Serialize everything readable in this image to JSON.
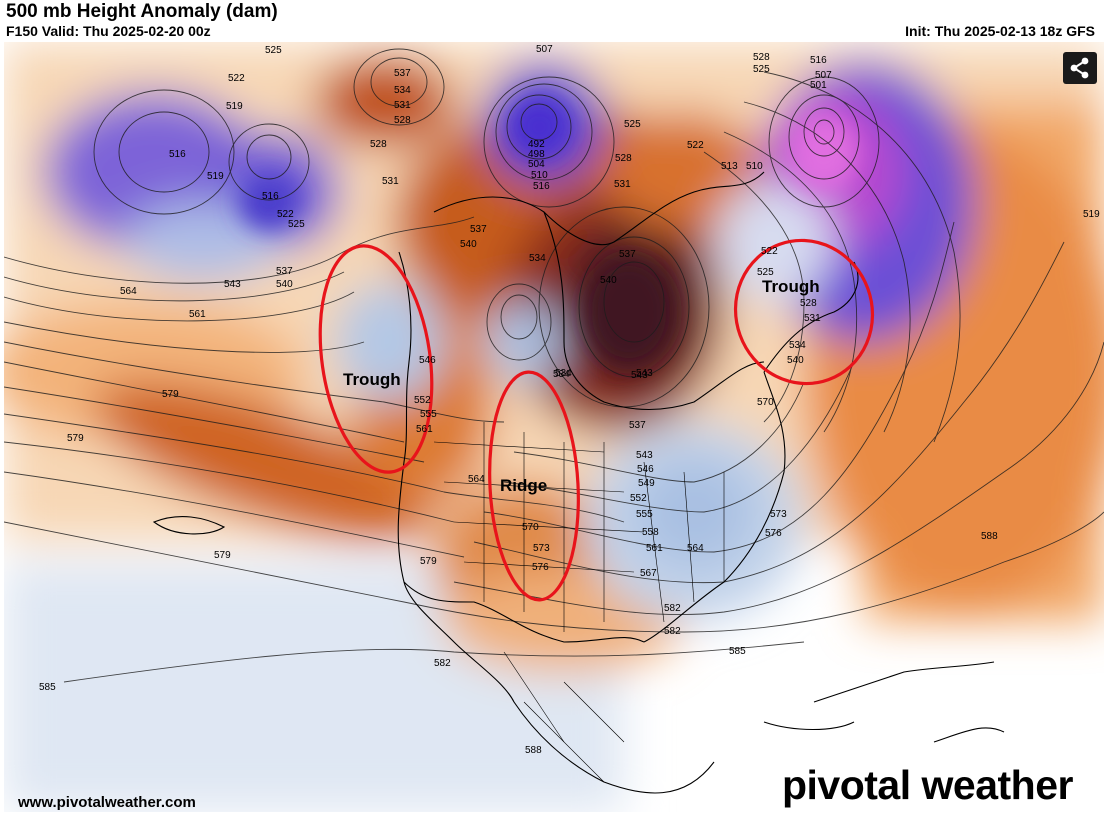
{
  "header": {
    "title": "500 mb Height Anomaly (dam)",
    "valid": "F150 Valid: Thu 2025-02-20 00z",
    "init": "Init: Thu 2025-02-13 18z GFS"
  },
  "footer": {
    "site": "www.pivotalweather.com",
    "brand": "pivotal weather"
  },
  "share_button": {
    "icon": "share-icon"
  },
  "annotations": [
    {
      "id": "trough-west",
      "text": "Trough",
      "circle_color": "#e8141b"
    },
    {
      "id": "ridge",
      "text": "Ridge",
      "circle_color": "#e8141b"
    },
    {
      "id": "trough-east",
      "text": "Trough",
      "circle_color": "#e8141b"
    }
  ],
  "contour_labels": [
    "525",
    "522",
    "519",
    "516",
    "519",
    "516",
    "522",
    "525",
    "537",
    "534",
    "531",
    "528",
    "507",
    "492",
    "498",
    "504",
    "510",
    "516",
    "525",
    "528",
    "522",
    "513",
    "510",
    "516",
    "507",
    "501",
    "528",
    "525",
    "531",
    "528",
    "537",
    "534",
    "540",
    "537",
    "543",
    "534",
    "540",
    "531",
    "537",
    "540",
    "543",
    "546",
    "552",
    "555",
    "561",
    "564",
    "564",
    "561",
    "579",
    "579",
    "579",
    "543",
    "534",
    "537",
    "543",
    "546",
    "549",
    "552",
    "555",
    "558",
    "561",
    "564",
    "567",
    "570",
    "573",
    "576",
    "579",
    "582",
    "582",
    "582",
    "585",
    "585",
    "588",
    "588",
    "519",
    "522",
    "525",
    "528",
    "531",
    "534",
    "540",
    "570",
    "573",
    "576"
  ],
  "colors": {
    "strong_positive": "#5e1d24",
    "positive": "#c15a17",
    "weak_positive": "#f2bf8f",
    "weak_negative": "#c7d8ec",
    "negative": "#5a4bd6",
    "strong_negative": "#c93ad4",
    "annotation": "#e8141b"
  }
}
